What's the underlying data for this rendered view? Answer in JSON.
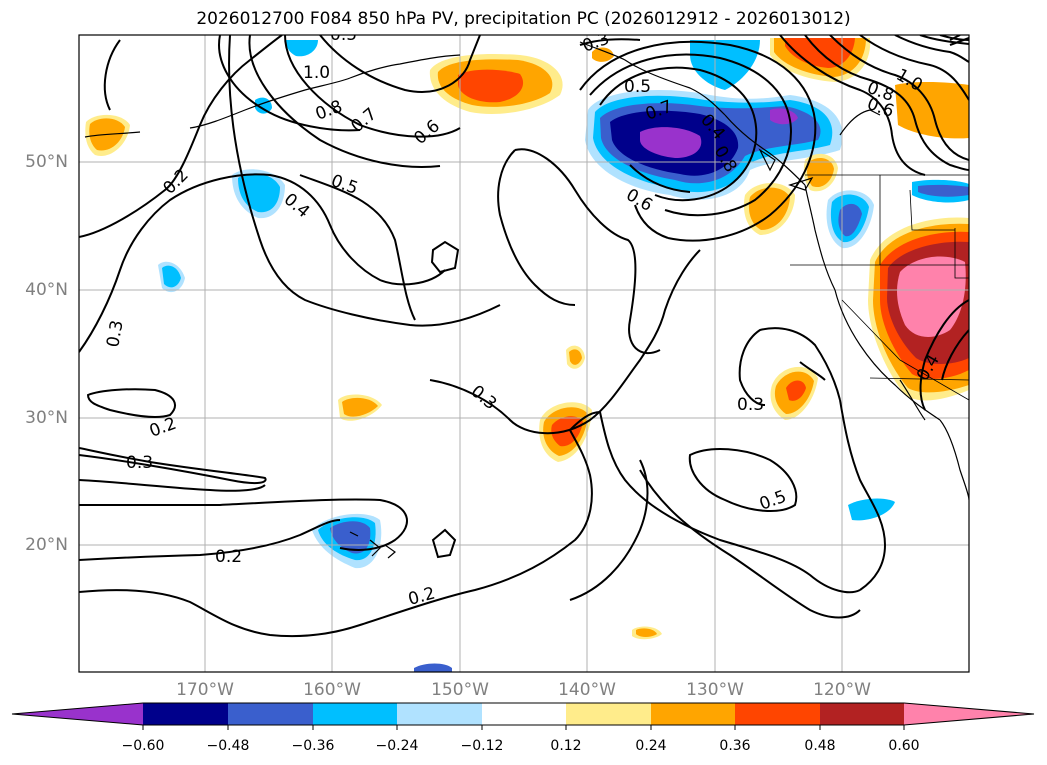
{
  "title": "2026012700 F084 850 hPa PV, precipitation PC (2026012912 - 2026013012)",
  "latitude_labels": [
    "50°N",
    "40°N",
    "30°N",
    "20°N"
  ],
  "longitude_labels": [
    "170°W",
    "160°W",
    "150°W",
    "140°W",
    "130°W",
    "120°W"
  ],
  "colorbar": {
    "tick_labels": [
      "−0.60",
      "−0.48",
      "−0.36",
      "−0.24",
      "−0.12",
      "0.12",
      "0.24",
      "0.36",
      "0.48",
      "0.60"
    ],
    "colors": [
      "#9932cc",
      "#00008b",
      "#3a5fcd",
      "#00bfff",
      "#b0e2ff",
      "#ffffff",
      "#ffec8b",
      "#ffa500",
      "#ff4500",
      "#b22222",
      "#ff82ab"
    ]
  },
  "contour_labels": [
    "1.0",
    "0.8",
    "0.7",
    "0.6",
    "0.5",
    "0.4",
    "0.2",
    "0.3",
    "0.3",
    "0.2",
    "0.3",
    "0.2",
    "0.2",
    "0.3",
    "0.5",
    "0.6",
    "0.5",
    "0.8",
    "0.7",
    "0.8",
    "0.6",
    "1.0",
    "0.4",
    "0.3",
    "0.5",
    "0.4"
  ]
}
